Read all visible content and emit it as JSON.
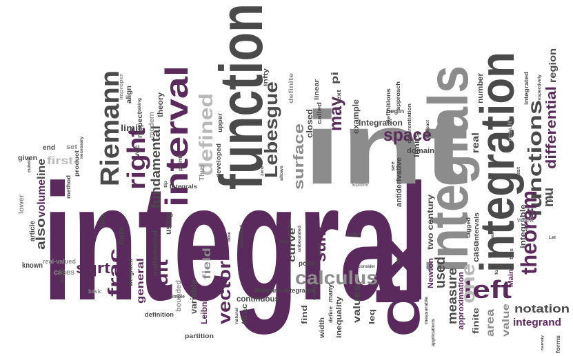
{
  "palette": {
    "dark_purple": "#5b2a5d",
    "mid_purple": "#6b3a6b",
    "gray": "#8c8c8c",
    "dark_gray": "#4a4a4a",
    "light_gray": "#b9b9b9",
    "black": "#222222",
    "violet": "#7b5b86"
  },
  "cloud": {
    "words": {
      "integral": "integral",
      "int": "int",
      "function": "function",
      "integrals": "integrals",
      "integration": "integration",
      "dx": "dx",
      "interval": "interval",
      "Riemann": "Riemann",
      "right": "right",
      "defined": "defined",
      "Lebesgue": "Lebesgue",
      "functions": "functions",
      "theorem": "theorem",
      "left": "left",
      "calculus": "calculus",
      "sum": "sum",
      "space": "space",
      "surface": "surface",
      "may": "may",
      "one": "one",
      "frac": "frac",
      "edit": "edit",
      "vector": "vector",
      "sqrt": "sqrt",
      "fundamental": "fundamental",
      "differential": "differential",
      "mu": "mu",
      "notation": "notation",
      "integrand": "integrand",
      "measure": "measure",
      "used": "used",
      "also": "also",
      "volume": "volume",
      "line": "line",
      "first": "first",
      "limit": "limit",
      "general": "general",
      "field": "field",
      "curve": "curve",
      "continuous": "continuous",
      "values": "values",
      "area": "area",
      "value": "value",
      "finite": "finite",
      "real": "real",
      "region": "region",
      "Integration": "Integration",
      "example": "example",
      "closed": "closed",
      "pi": "pi",
      "two_century": "two century",
      "Newton": "Newton",
      "case": "case",
      "approximation": "approximation",
      "limits": "limits",
      "number": "number",
      "integrable": "integrable",
      "Main": "Main",
      "antiderivative": "antiderivative",
      "domain": "domain",
      "inequality": "inequality",
      "find": "find",
      "width": "width",
      "leq": "leq",
      "Riemann_integrable": "Riemann-integrable",
      "cases": "cases",
      "known": "known",
      "form": "form",
      "lim": "lim",
      "using": "using",
      "mathematical": "mathematical",
      "bounded": "bounded",
      "variable": "variable",
      "Leibniz": "Leibniz",
      "tfrac": "tfrac",
      "partition": "partition",
      "definition": "definition",
      "basic": "basic",
      "weighted": "weighted",
      "real_valued": "real-valued",
      "article": "article",
      "lower": "lower",
      "given": "given",
      "end": "end",
      "set": "set",
      "method": "method",
      "product": "product",
      "vec": "vec",
      "respect": "respect",
      "modern": "modern",
      "theory": "theory",
      "align": "align",
      "Thus": "Thus",
      "developed": "developed",
      "upper": "upper",
      "infty": "infty",
      "definite": "definite",
      "called": "called",
      "linear": "linear",
      "text": "text",
      "approach": "approach",
      "definitions": "definitions",
      "begin": "begin",
      "see": "see",
      "sums": "sums",
      "forms": "forms",
      "work": "work",
      "result": "result",
      "integrated": "integrated",
      "respectively": "respectively",
      "exist": "exist",
      "scalar": "scalar",
      "point": "point",
      "goes": "goes",
      "define": "define",
      "many": "many",
      "time": "time",
      "done": "done",
      "simple": "simple",
      "Integrals": "Integrals",
      "points": "points",
      "improper": "improper",
      "taking": "taking",
      "higher": "higher",
      "consider": "consider",
      "xi": "xi",
      "omega": "omega",
      "tagged": "tagged",
      "intervals": "intervals",
      "differentiation": "differentiation",
      "compact": "compact",
      "elements": "elements",
      "thus": "thus",
      "applications": "applications",
      "namely": "namely",
      "Let": "Let",
      "le": "le",
      "fold": "fold",
      "natural": "natural",
      "calculated": "calculated",
      "allows": "allows",
      "zero": "zero",
      "unbounded": "unbounded",
      "measurable": "measurable",
      "cuboid": "cuboid",
      "wedge": "wedge",
      "necessary": "necessary",
      "tip": "tip"
    }
  }
}
